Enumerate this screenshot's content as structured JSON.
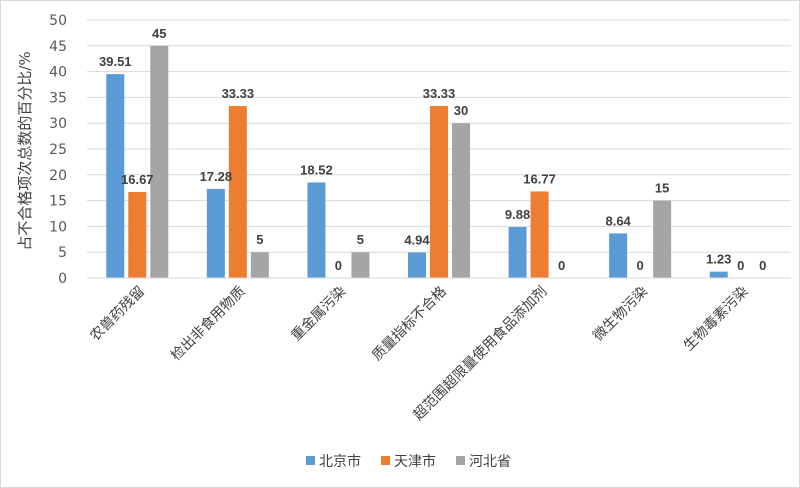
{
  "chart_data": {
    "type": "bar",
    "title": "",
    "xlabel": "",
    "ylabel": "占不合格项次总数的百分比/%",
    "ylim": [
      0,
      50
    ],
    "yticks": [
      0,
      5,
      10,
      15,
      20,
      25,
      30,
      35,
      40,
      45,
      50
    ],
    "grid": true,
    "legend_position": "bottom",
    "categories": [
      "农兽药残留",
      "检出非食用物质",
      "重金属污染",
      "质量指标不合格",
      "超范围超限量使用食品添加剂",
      "微生物污染",
      "生物毒素污染"
    ],
    "series": [
      {
        "name": "北京市",
        "color": "#5b9bd5",
        "values": [
          39.51,
          17.28,
          18.52,
          4.94,
          9.88,
          8.64,
          1.23
        ],
        "labels": [
          "39.51",
          "17.28",
          "18.52",
          "4.94",
          "9.88",
          "8.64",
          "1.23"
        ]
      },
      {
        "name": "天津市",
        "color": "#ed7d31",
        "values": [
          16.67,
          33.33,
          0,
          33.33,
          16.77,
          0,
          0
        ],
        "labels": [
          "16.67",
          "33.33",
          "0",
          "33.33",
          "16.77",
          "0",
          "0"
        ]
      },
      {
        "name": "河北省",
        "color": "#a5a5a5",
        "values": [
          45,
          5,
          5,
          30,
          0,
          15,
          0
        ],
        "labels": [
          "45",
          "5",
          "5",
          "30",
          "0",
          "15",
          "0"
        ]
      }
    ]
  }
}
